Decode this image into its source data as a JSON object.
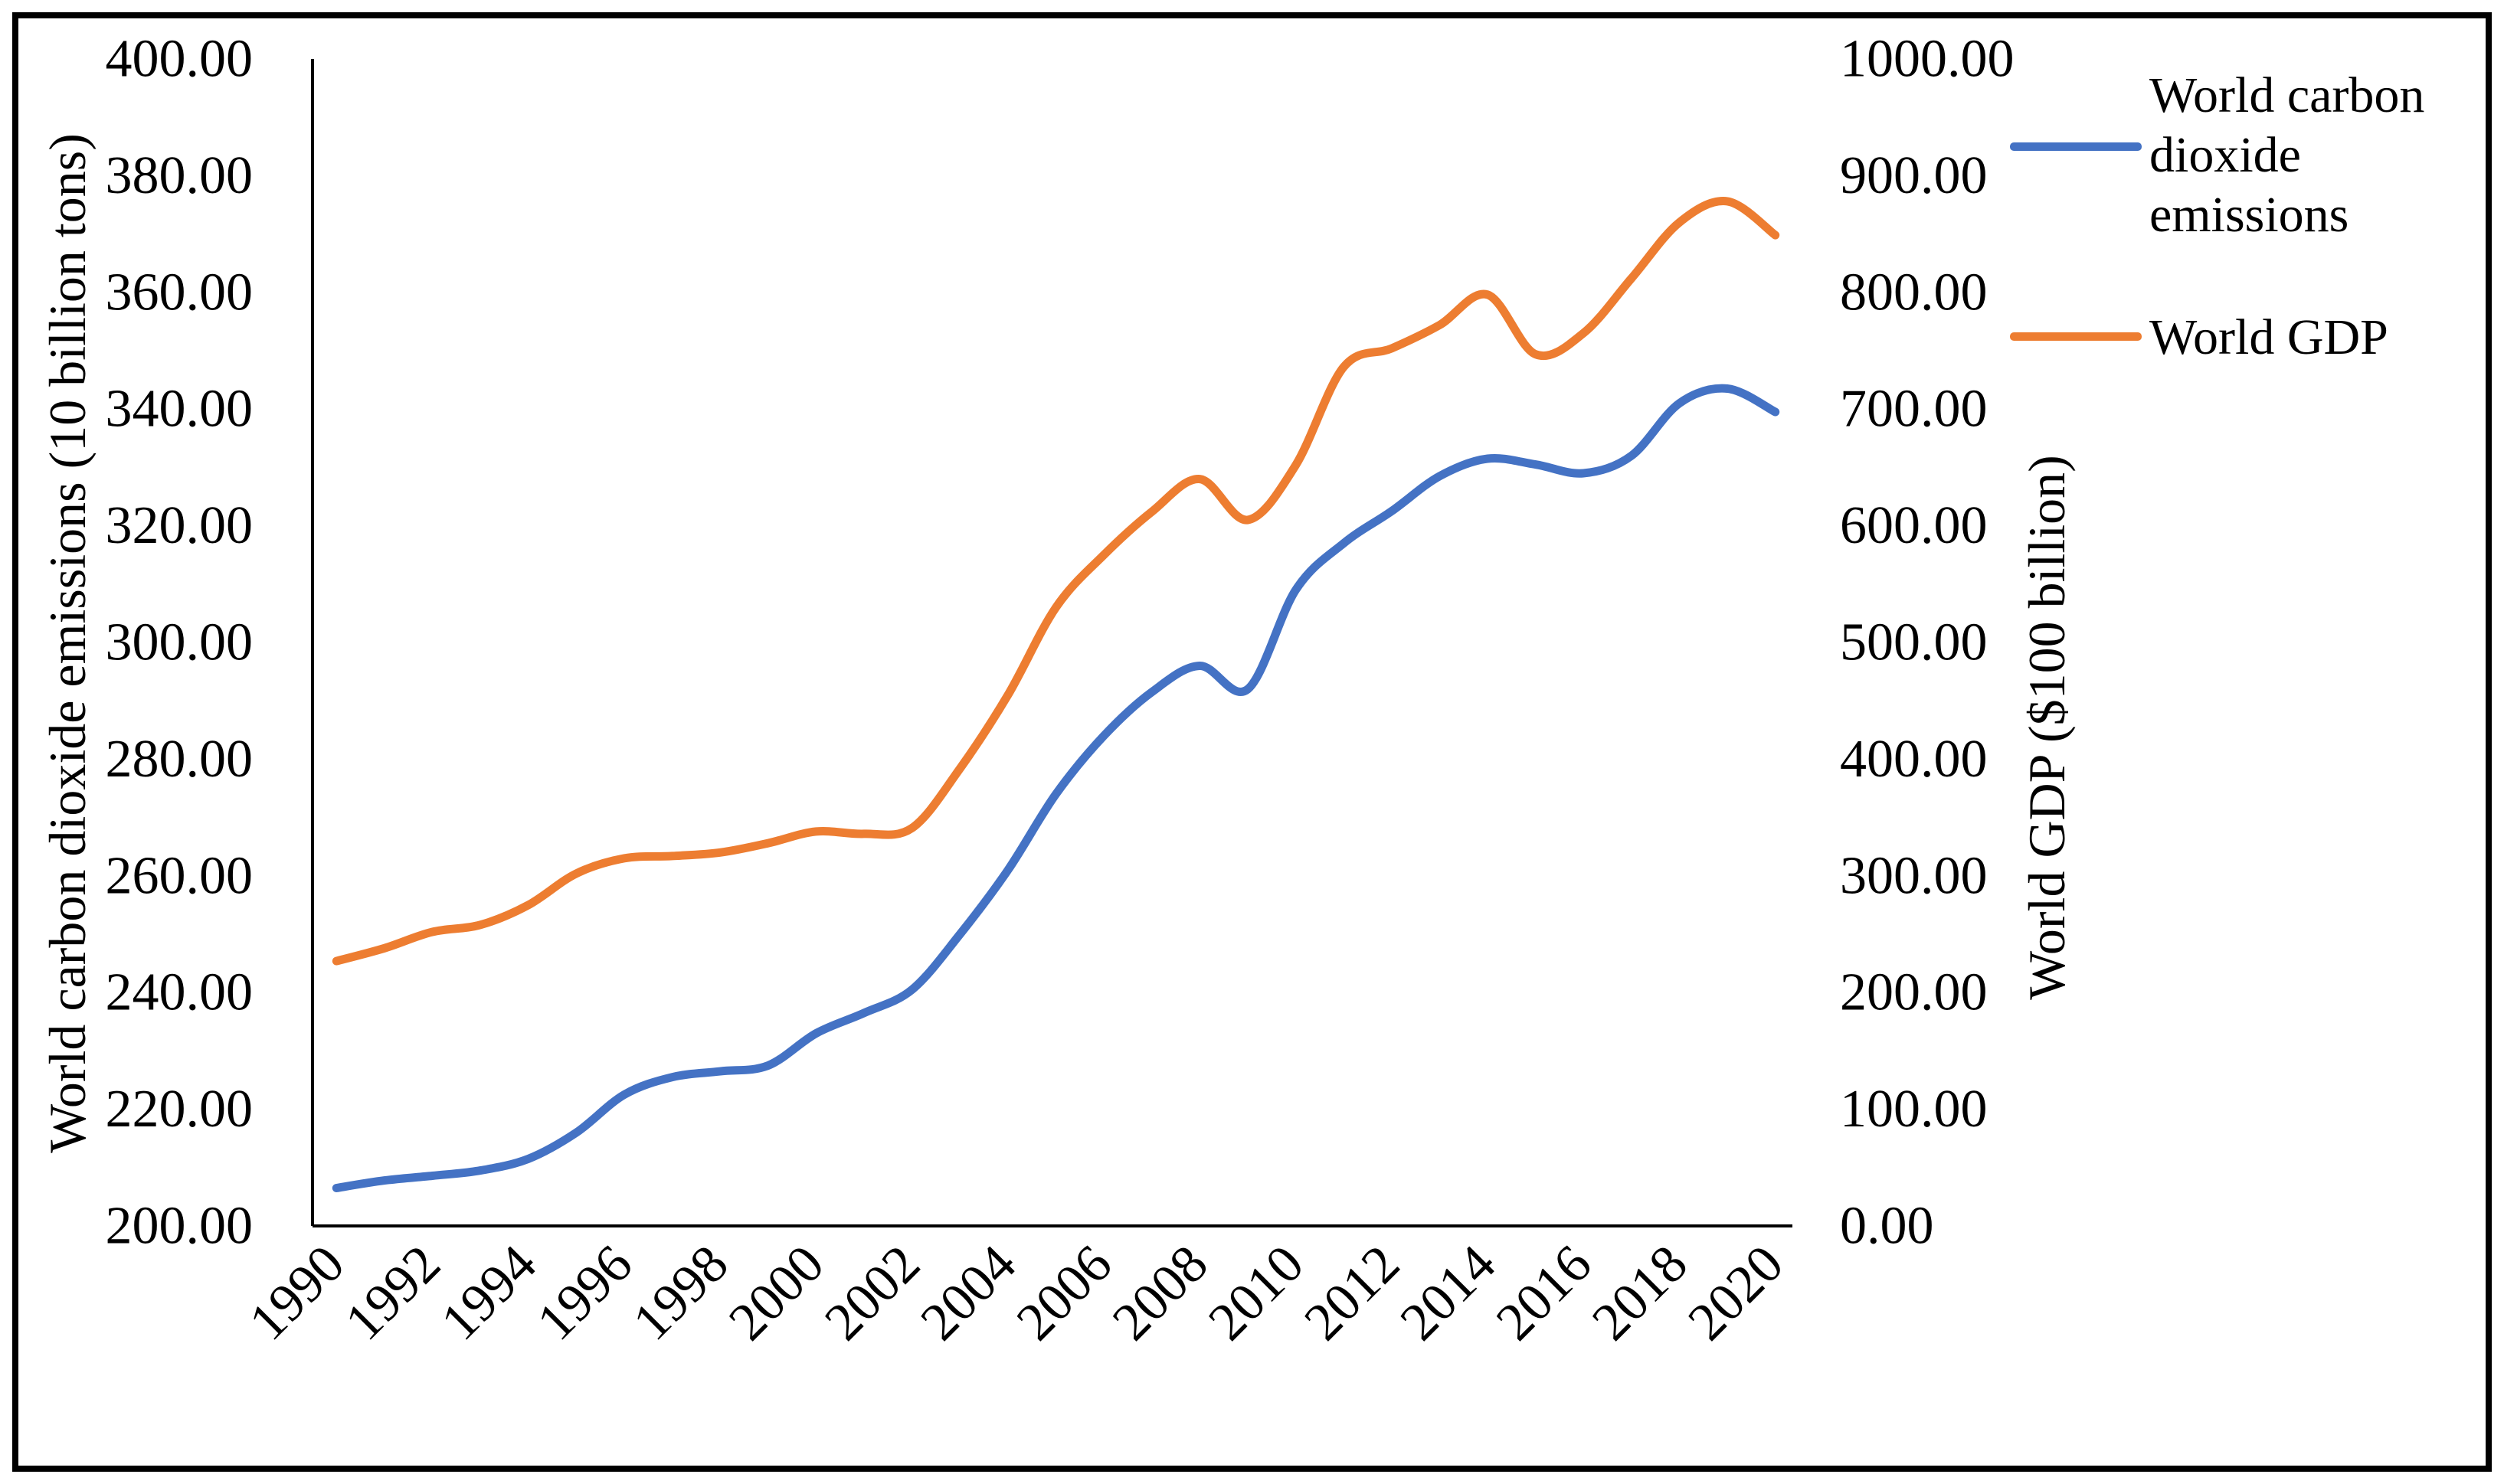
{
  "chart_data": {
    "type": "line",
    "title": "",
    "categories": [
      1990,
      1991,
      1992,
      1993,
      1994,
      1995,
      1996,
      1997,
      1998,
      1999,
      2000,
      2001,
      2002,
      2003,
      2004,
      2005,
      2006,
      2007,
      2008,
      2009,
      2010,
      2011,
      2012,
      2013,
      2014,
      2015,
      2016,
      2017,
      2018,
      2019,
      2020
    ],
    "x_tick_labels": [
      "1990",
      "1992",
      "1994",
      "1996",
      "1998",
      "2000",
      "2002",
      "2004",
      "2006",
      "2008",
      "2010",
      "2012",
      "2014",
      "2016",
      "2018",
      "2020"
    ],
    "series": [
      {
        "name": "World carbon dioxide emissions",
        "axis": "left",
        "color": "#4472C4",
        "values": [
          206.5,
          207.8,
          208.6,
          209.5,
          211.5,
          216.0,
          222.5,
          225.5,
          226.5,
          227.5,
          233.0,
          236.5,
          240.5,
          250.0,
          261.0,
          274.0,
          284.0,
          291.5,
          296.0,
          292.0,
          309.0,
          317.0,
          322.5,
          328.5,
          331.5,
          330.5,
          329.0,
          332.0,
          341.0,
          343.5,
          339.5
        ]
      },
      {
        "name": "World GDP",
        "axis": "right",
        "color": "#ED7D31",
        "values": [
          227,
          238,
          252,
          258,
          275,
          302,
          315,
          317,
          320,
          328,
          338,
          336,
          341,
          392,
          455,
          530,
          575,
          612,
          640,
          605,
          652,
          736,
          752,
          772,
          798,
          747,
          765,
          812,
          860,
          878,
          849
        ]
      }
    ],
    "y_left": {
      "label": "World carbon dioxide emissions (10 billion tons)",
      "min": 200,
      "max": 400,
      "step": 20,
      "tick_labels": [
        "400.00",
        "380.00",
        "360.00",
        "340.00",
        "320.00",
        "300.00",
        "280.00",
        "260.00",
        "240.00",
        "220.00",
        "200.00"
      ]
    },
    "y_right": {
      "label": "World GDP ($100 billion)",
      "min": 0,
      "max": 1000,
      "step": 100,
      "tick_labels": [
        "1000.00",
        "900.00",
        "800.00",
        "700.00",
        "600.00",
        "500.00",
        "400.00",
        "300.00",
        "200.00",
        "100.00",
        "0.00"
      ]
    },
    "legend_position": "top-right",
    "grid": false,
    "smooth_lines": true
  },
  "colors": {
    "co2_line": "#4472C4",
    "gdp_line": "#ED7D31",
    "axis_line": "#000000",
    "border": "#000000",
    "background": "#FFFFFF",
    "text": "#000000"
  }
}
